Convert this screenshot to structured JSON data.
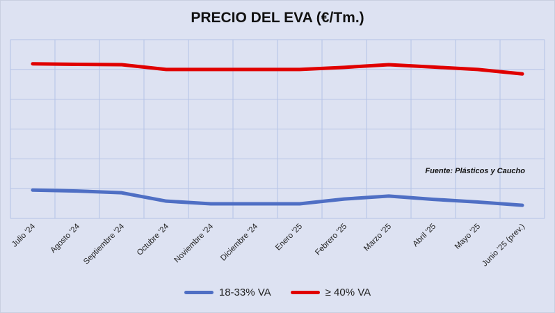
{
  "chart_data": {
    "type": "line",
    "title": "PRECIO DEL EVA (€/Tm.)",
    "annotation": "Fuente: Plásticos y Caucho",
    "categories": [
      "Julio '24",
      "Agosto '24",
      "Septiembre '24",
      "Octubre '24",
      "Noviembre '24",
      "Diciembre '24",
      "Enero '25",
      "Febrero '25",
      "Marzo '25",
      "Abril '25",
      "Mayo '25",
      "Junio '25 (prev.)"
    ],
    "ylim": [
      0,
      6
    ],
    "y_units_note": "",
    "grid": true,
    "legend_position": "bottom",
    "series": [
      {
        "name": "18-33% VA",
        "color": "#4f6fc4",
        "values": [
          0.95,
          0.92,
          0.86,
          0.58,
          0.49,
          0.49,
          0.49,
          0.65,
          0.75,
          0.64,
          0.55,
          0.44
        ]
      },
      {
        "name": "≥ 40% VA",
        "color": "#e00000",
        "values": [
          5.19,
          5.17,
          5.16,
          5.0,
          5.0,
          5.0,
          5.0,
          5.07,
          5.16,
          5.08,
          5.0,
          4.85
        ]
      }
    ]
  }
}
